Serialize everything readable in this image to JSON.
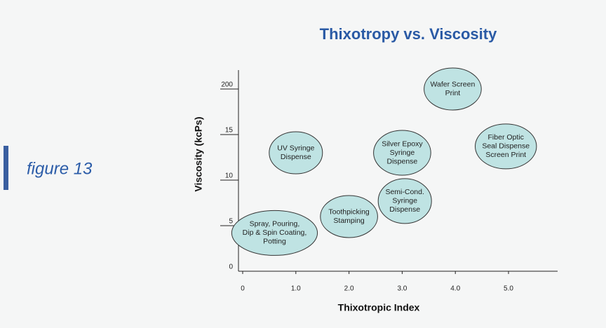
{
  "chart_data": {
    "type": "scatter",
    "caption": "figure 13",
    "title": "Thixotropy vs. Viscosity",
    "x_label": "Thixotropic Index",
    "y_label": "Viscosity (kcPs)",
    "xlim": [
      0,
      6
    ],
    "xticks": [
      0,
      {
        "value": 1,
        "label": "1.0"
      },
      {
        "value": 2,
        "label": "2.0"
      },
      {
        "value": 3,
        "label": "3.0"
      },
      {
        "value": 4,
        "label": "4.0"
      },
      {
        "value": 5,
        "label": "5.0"
      }
    ],
    "ylim": [
      0,
      200
    ],
    "yticks": [
      0,
      5,
      10,
      15,
      200
    ],
    "color": "#bfe3e3",
    "series": [
      {
        "labels": [
          [
            "Wafer Screen",
            "Print"
          ],
          [
            "Fiber Optic",
            "Seal Dispense",
            "Screen Print"
          ],
          [
            "UV Syringe",
            "Dispense"
          ],
          [
            "Silver Epoxy",
            "Syringe",
            "Dispense"
          ],
          [
            "Semi-Cond.",
            "Syringe",
            "Dispense"
          ],
          [
            "Toothpicking",
            "Stamping"
          ],
          [
            "Spray, Pouring,",
            "Dip & Spin Coating,",
            "Potting"
          ]
        ],
        "x": [
          3.95,
          4.95,
          1.0,
          3.0,
          3.05,
          2.0,
          0.6
        ],
        "values": [
          200,
          13.7,
          13,
          13,
          7.7,
          6,
          4.2
        ]
      }
    ]
  }
}
